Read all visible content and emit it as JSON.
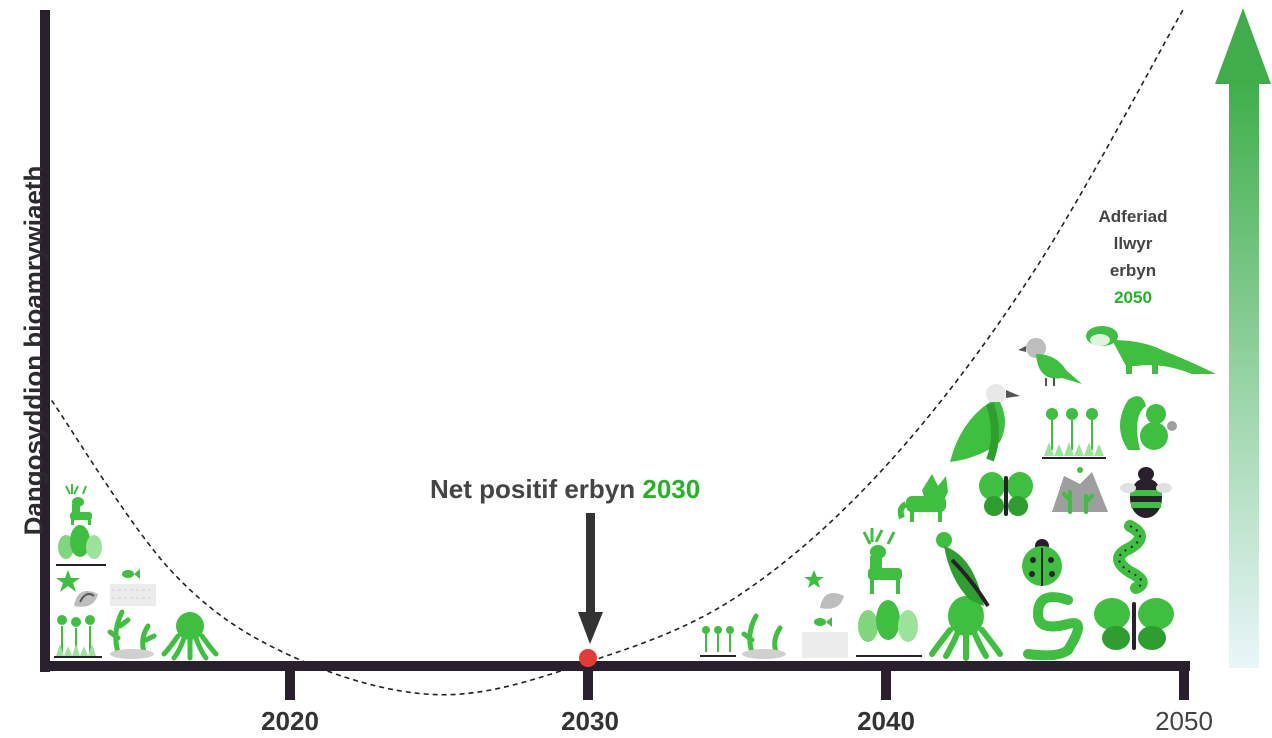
{
  "chart_data": {
    "type": "line",
    "ylabel": "Dangosyddion bioamrywiaeth",
    "xlabel": "",
    "x_ticks": [
      "2020",
      "2030",
      "2040",
      "2050"
    ],
    "xlim": [
      2012,
      2050
    ],
    "annotations": {
      "net_positive": {
        "text": "Net positif erbyn ",
        "year": "2030"
      },
      "recovery": {
        "lines": [
          "Adferiad",
          "llwyr",
          "erbyn"
        ],
        "year": "2050"
      }
    },
    "curve": {
      "style": "dashed",
      "x": [
        2012,
        2016,
        2020,
        2025,
        2030,
        2035,
        2040,
        2045,
        2050
      ],
      "y": [
        0.4,
        0.14,
        0.01,
        -0.05,
        0.0,
        0.1,
        0.3,
        0.6,
        1.0
      ]
    },
    "marker": {
      "x": 2030,
      "y": 0,
      "color": "#e53935"
    },
    "colors": {
      "axis": "#2a1f2d",
      "accent": "#22b422",
      "icon": "#3fbf3f",
      "arrow_top": "#3fae4a",
      "arrow_bottom": "#eaf6fa"
    },
    "icons_left": [
      "deer-icon",
      "trees-icon",
      "starfish-shell-icon",
      "fish-water-icon",
      "flowers-icon",
      "seaweed-icon",
      "octopus-icon"
    ],
    "icons_right": [
      "flowers-icon",
      "seaweed-icon",
      "shell-icon",
      "fish-water-icon",
      "deer-icon",
      "trees-icon",
      "octopus-icon",
      "fox-icon",
      "eagle-icon",
      "vulture-icon",
      "butterfly-icon",
      "flowers-icon",
      "rocks-plants-icon",
      "ladybird-icon",
      "worm-icon",
      "bird-icon",
      "otter-icon",
      "squirrel-icon",
      "bee-icon",
      "centipede-icon",
      "butterfly-icon"
    ]
  }
}
